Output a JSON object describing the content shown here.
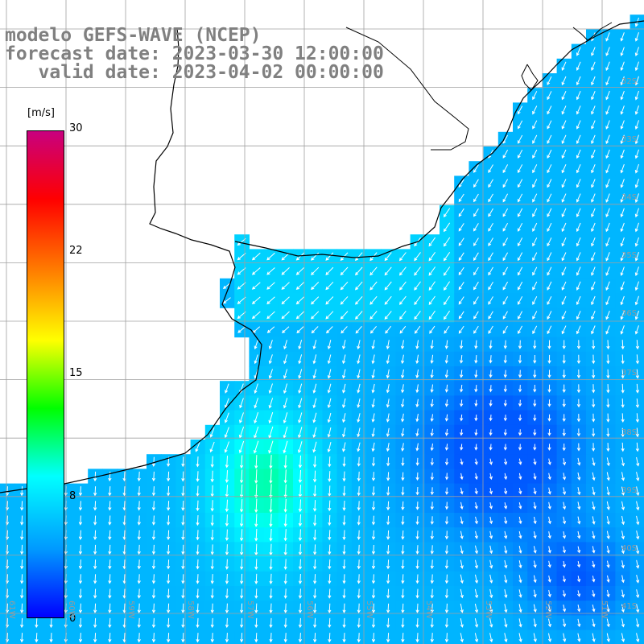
{
  "title": {
    "line1": "modelo GEFS-WAVE (NCEP)",
    "line2": "forecast date: 2023-03-30 12:00:00",
    "line3": "   valid date: 2023-04-02 00:00:00"
  },
  "colorbar": {
    "unit": "[m/s]",
    "ticks": [
      "30",
      "22",
      "15",
      "8",
      "0"
    ],
    "tick_values": [
      30,
      22,
      15,
      8,
      0
    ],
    "range": [
      0,
      30
    ],
    "colors": [
      "#0000ff",
      "#0099ff",
      "#00ffff",
      "#00ff00",
      "#ffff00",
      "#ff8000",
      "#ff0000",
      "#c8007f"
    ]
  },
  "map": {
    "land_color": "#ffffff",
    "coastline_color": "#000000",
    "grid_color": "#a0a0a0",
    "arrow_color": "#ffffff",
    "lon_labels": [
      "61W",
      "60W",
      "59W",
      "58W",
      "57W",
      "56W",
      "55W",
      "54W",
      "53W",
      "52W",
      "51W"
    ],
    "lat_labels": [
      "32S",
      "33S",
      "34S",
      "35S",
      "36S",
      "37S",
      "38S",
      "39S",
      "40S",
      "41S"
    ]
  }
}
